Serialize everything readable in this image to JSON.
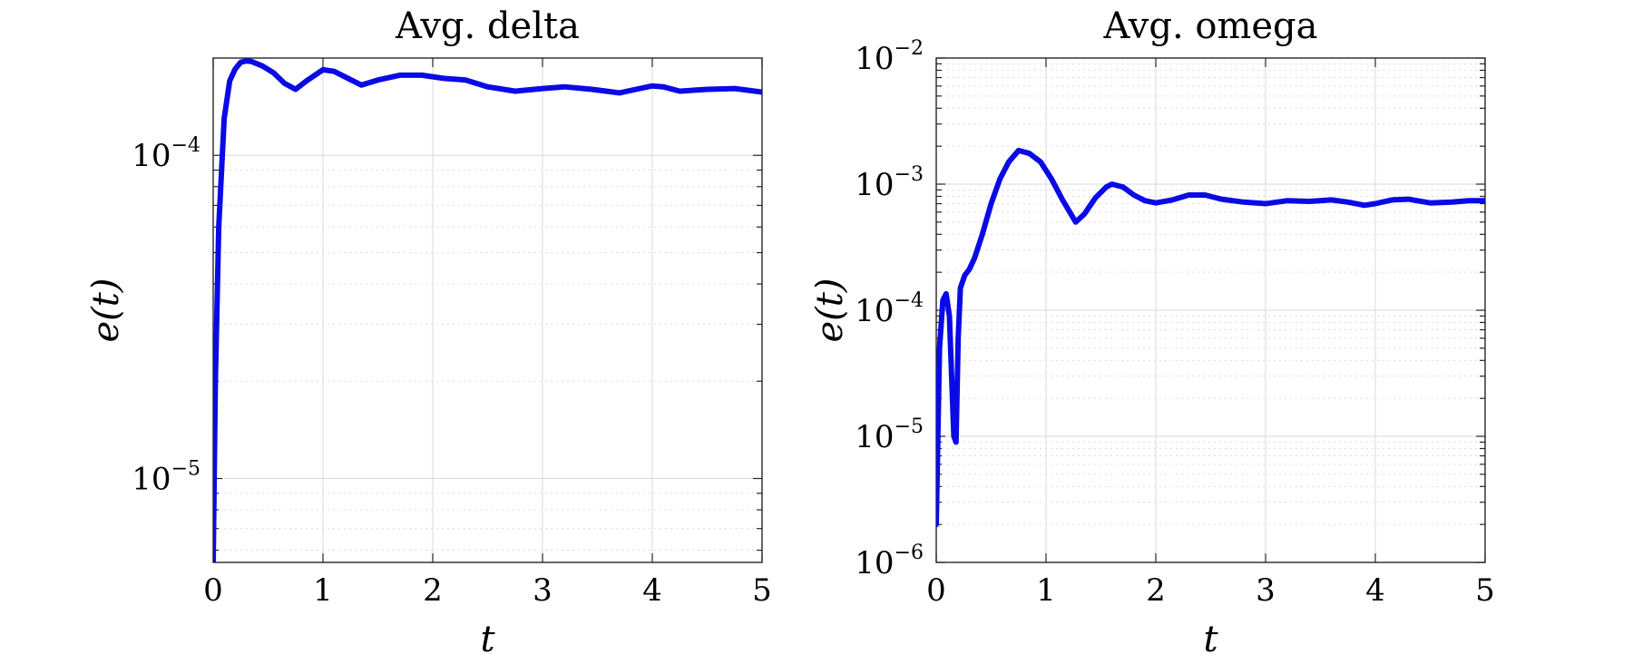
{
  "chart_data": [
    {
      "type": "line",
      "title": "Avg. delta",
      "xlabel": "t",
      "ylabel": "e(t)",
      "xlim": [
        0,
        5
      ],
      "ylim": [
        5.5e-06,
        0.0002
      ],
      "yscale": "log",
      "xticks": [
        "0",
        "1",
        "2",
        "3",
        "4",
        "5"
      ],
      "yticks": [
        {
          "base": "10",
          "exp": "−5",
          "value": 1e-05
        },
        {
          "base": "10",
          "exp": "−4",
          "value": 0.0001
        }
      ],
      "grid": true,
      "series": [
        {
          "color": "#0a0ae6",
          "x": [
            0,
            0.02,
            0.05,
            0.1,
            0.15,
            0.2,
            0.25,
            0.3,
            0.35,
            0.45,
            0.55,
            0.65,
            0.75,
            0.85,
            1.0,
            1.1,
            1.2,
            1.35,
            1.5,
            1.7,
            1.9,
            2.1,
            2.3,
            2.5,
            2.75,
            3.0,
            3.2,
            3.45,
            3.7,
            3.85,
            4.0,
            4.1,
            4.25,
            4.5,
            4.75,
            5.0
          ],
          "y": [
            5.5e-06,
            2e-05,
            6e-05,
            0.00013,
            0.00017,
            0.000185,
            0.000194,
            0.000196,
            0.000195,
            0.000189,
            0.00018,
            0.000167,
            0.00016,
            0.00017,
            0.000184,
            0.000182,
            0.000175,
            0.000165,
            0.000171,
            0.000177,
            0.000177,
            0.000173,
            0.000171,
            0.000163,
            0.000158,
            0.000161,
            0.000163,
            0.00016,
            0.000156,
            0.00016,
            0.000164,
            0.000163,
            0.000158,
            0.00016,
            0.000161,
            0.000157
          ]
        }
      ]
    },
    {
      "type": "line",
      "title": "Avg. omega",
      "xlabel": "t",
      "ylabel": "e(t)",
      "xlim": [
        0,
        5
      ],
      "ylim": [
        1e-06,
        0.01
      ],
      "yscale": "log",
      "xticks": [
        "0",
        "1",
        "2",
        "3",
        "4",
        "5"
      ],
      "yticks": [
        {
          "base": "10",
          "exp": "−6",
          "value": 1e-06
        },
        {
          "base": "10",
          "exp": "−5",
          "value": 1e-05
        },
        {
          "base": "10",
          "exp": "−4",
          "value": 0.0001
        },
        {
          "base": "10",
          "exp": "−3",
          "value": 0.001
        },
        {
          "base": "10",
          "exp": "−2",
          "value": 0.01
        }
      ],
      "grid": true,
      "series": [
        {
          "color": "#0a0ae6",
          "x": [
            0,
            0.03,
            0.06,
            0.09,
            0.12,
            0.16,
            0.18,
            0.2,
            0.22,
            0.26,
            0.3,
            0.35,
            0.42,
            0.5,
            0.58,
            0.66,
            0.75,
            0.85,
            0.95,
            1.05,
            1.15,
            1.27,
            1.35,
            1.45,
            1.55,
            1.6,
            1.7,
            1.8,
            1.9,
            2.0,
            2.15,
            2.3,
            2.45,
            2.6,
            2.8,
            3.0,
            3.2,
            3.4,
            3.6,
            3.75,
            3.9,
            4.0,
            4.15,
            4.3,
            4.5,
            4.7,
            4.85,
            5.0
          ],
          "y": [
            2e-06,
            5e-05,
            0.00012,
            0.000135,
            9e-05,
            1e-05,
            9e-06,
            6e-05,
            0.00015,
            0.00019,
            0.00021,
            0.00026,
            0.0004,
            0.0007,
            0.0011,
            0.0015,
            0.00185,
            0.00175,
            0.0015,
            0.0011,
            0.00075,
            0.0005,
            0.00058,
            0.00078,
            0.00095,
            0.001,
            0.00095,
            0.00082,
            0.00074,
            0.00071,
            0.00075,
            0.00082,
            0.00082,
            0.00076,
            0.00072,
            0.0007,
            0.00074,
            0.00073,
            0.00075,
            0.00072,
            0.00068,
            0.0007,
            0.00075,
            0.00076,
            0.00071,
            0.00072,
            0.00074,
            0.00074
          ]
        }
      ]
    }
  ]
}
